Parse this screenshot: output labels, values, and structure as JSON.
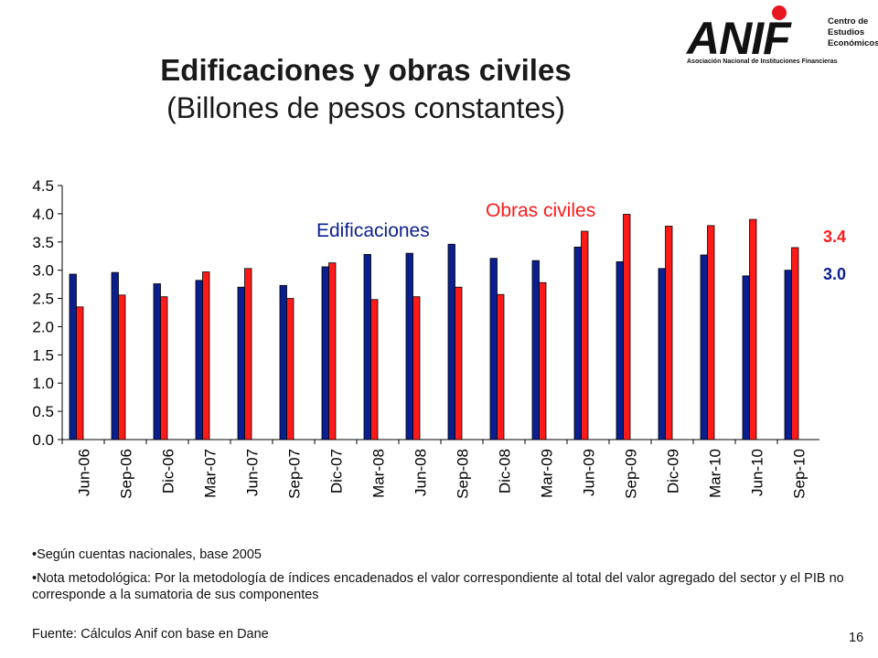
{
  "slide": {
    "title": "Edificaciones y obras civiles",
    "subtitle": "(Billones de pesos constantes)",
    "page_number": "16"
  },
  "logo": {
    "brand": "ANIF",
    "tagline": "Asociación Nacional de Instituciones Financieras",
    "center_lines": [
      "Centro de",
      "Estudios",
      "Económicos"
    ],
    "dot_color": "#e8161f"
  },
  "notes": [
    "•Según cuentas nacionales, base 2005",
    "•Nota metodológica:  Por la metodología de índices encadenados el valor correspondiente al total del valor agregado del sector y el PIB no corresponde a la sumatoria de sus componentes"
  ],
  "source": "Fuente: Cálculos Anif con base en Dane",
  "chart_data": {
    "type": "bar",
    "categories": [
      "Jun-06",
      "Sep-06",
      "Dic-06",
      "Mar-07",
      "Jun-07",
      "Sep-07",
      "Dic-07",
      "Mar-08",
      "Jun-08",
      "Sep-08",
      "Dic-08",
      "Mar-09",
      "Jun-09",
      "Sep-09",
      "Dic-09",
      "Mar-10",
      "Jun-10",
      "Sep-10"
    ],
    "series": [
      {
        "name": "Edificaciones",
        "color": "#0a1f8f",
        "values": [
          2.93,
          2.96,
          2.76,
          2.82,
          2.7,
          2.73,
          3.06,
          3.28,
          3.3,
          3.46,
          3.21,
          3.17,
          3.41,
          3.15,
          3.03,
          3.27,
          2.9,
          3.0
        ]
      },
      {
        "name": "Obras civiles",
        "color": "#ff1a1a",
        "values": [
          2.35,
          2.56,
          2.53,
          2.97,
          3.03,
          2.5,
          3.13,
          2.48,
          2.53,
          2.7,
          2.57,
          2.78,
          3.69,
          3.99,
          3.78,
          3.79,
          3.9,
          3.4
        ]
      }
    ],
    "end_labels": [
      {
        "series": "Obras civiles",
        "text": "3.4",
        "color": "#ff1a1a"
      },
      {
        "series": "Edificaciones",
        "text": "3.0",
        "color": "#0a1f8f"
      }
    ],
    "ylim": [
      0,
      4.5
    ],
    "yticks": [
      "0.0",
      "0.5",
      "1.0",
      "1.5",
      "2.0",
      "2.5",
      "3.0",
      "3.5",
      "4.0",
      "4.5"
    ],
    "xlabel": "",
    "ylabel": "",
    "grid": false,
    "legend": "inline labels"
  }
}
